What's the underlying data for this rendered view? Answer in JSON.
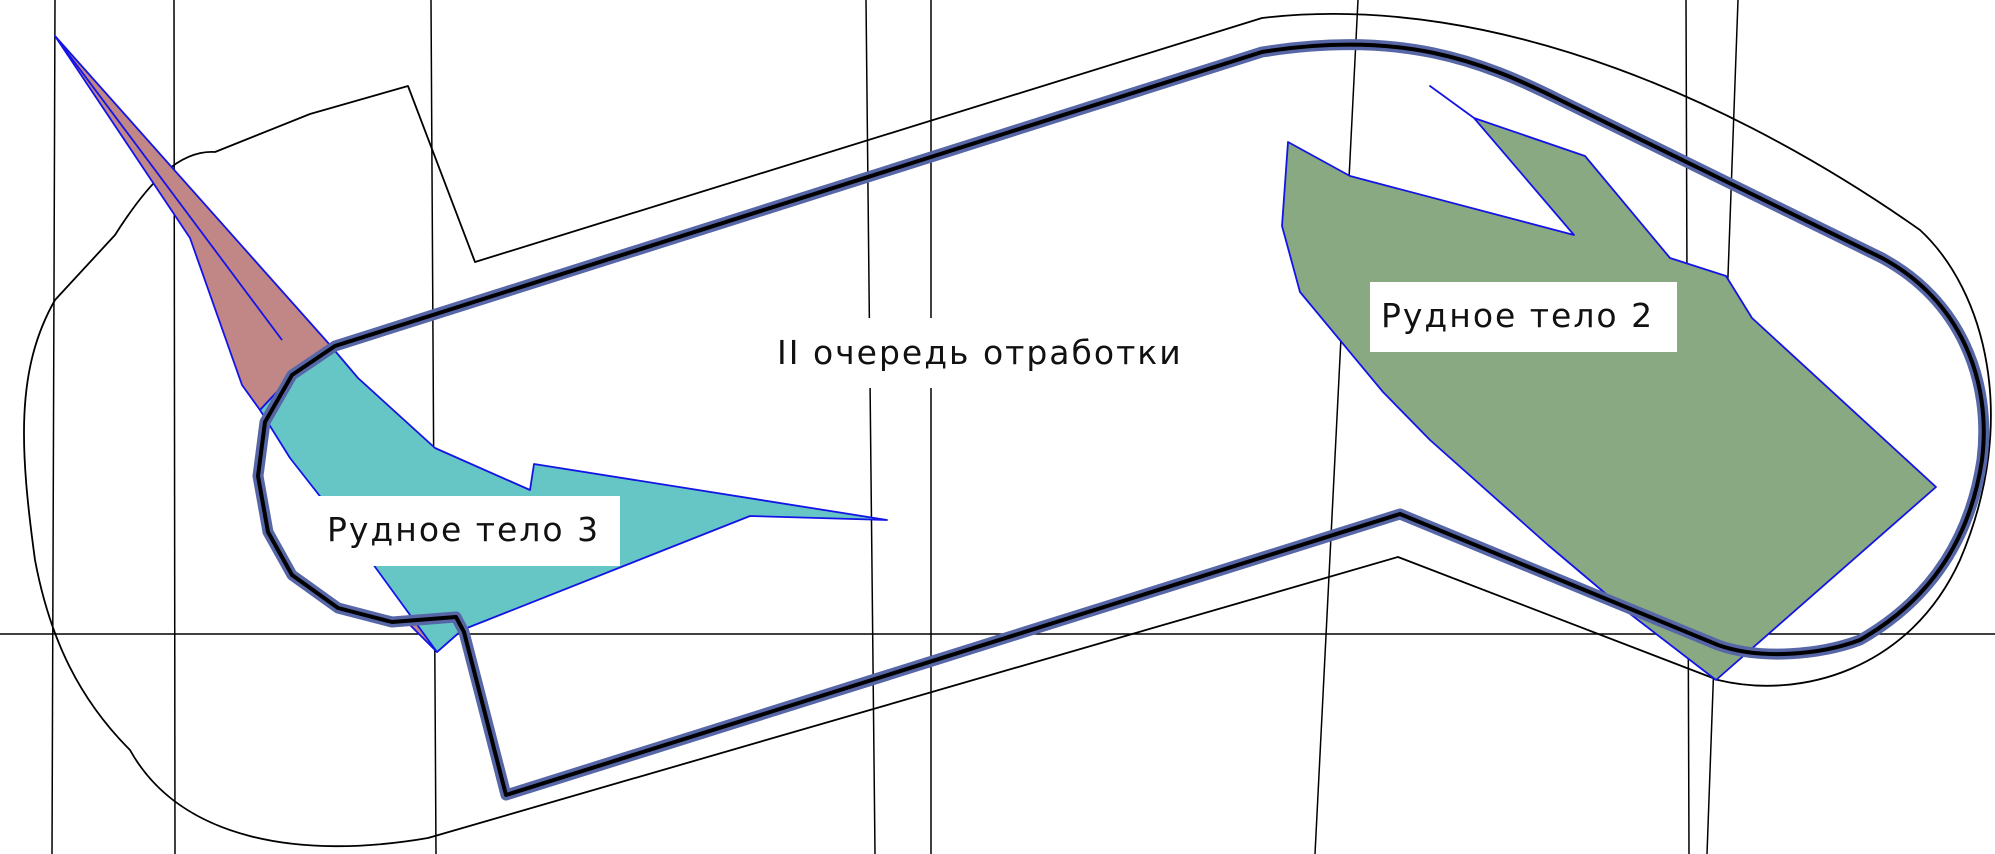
{
  "labels": {
    "main_label": "II очередь отработки",
    "ore_body_2": "Рудное тело 2",
    "ore_body_3": "Рудное тело 3"
  },
  "colors": {
    "background": "#ffffff",
    "grid_line": "#000000",
    "outline": "#000000",
    "pit_boundary_halo": "#5766a6",
    "ore_outline": "#1414e6",
    "ore_body_2_fill": "#88a982",
    "ore_body_3_fill": "#66c6c6",
    "ore_body_pink_fill": "#c18686"
  }
}
